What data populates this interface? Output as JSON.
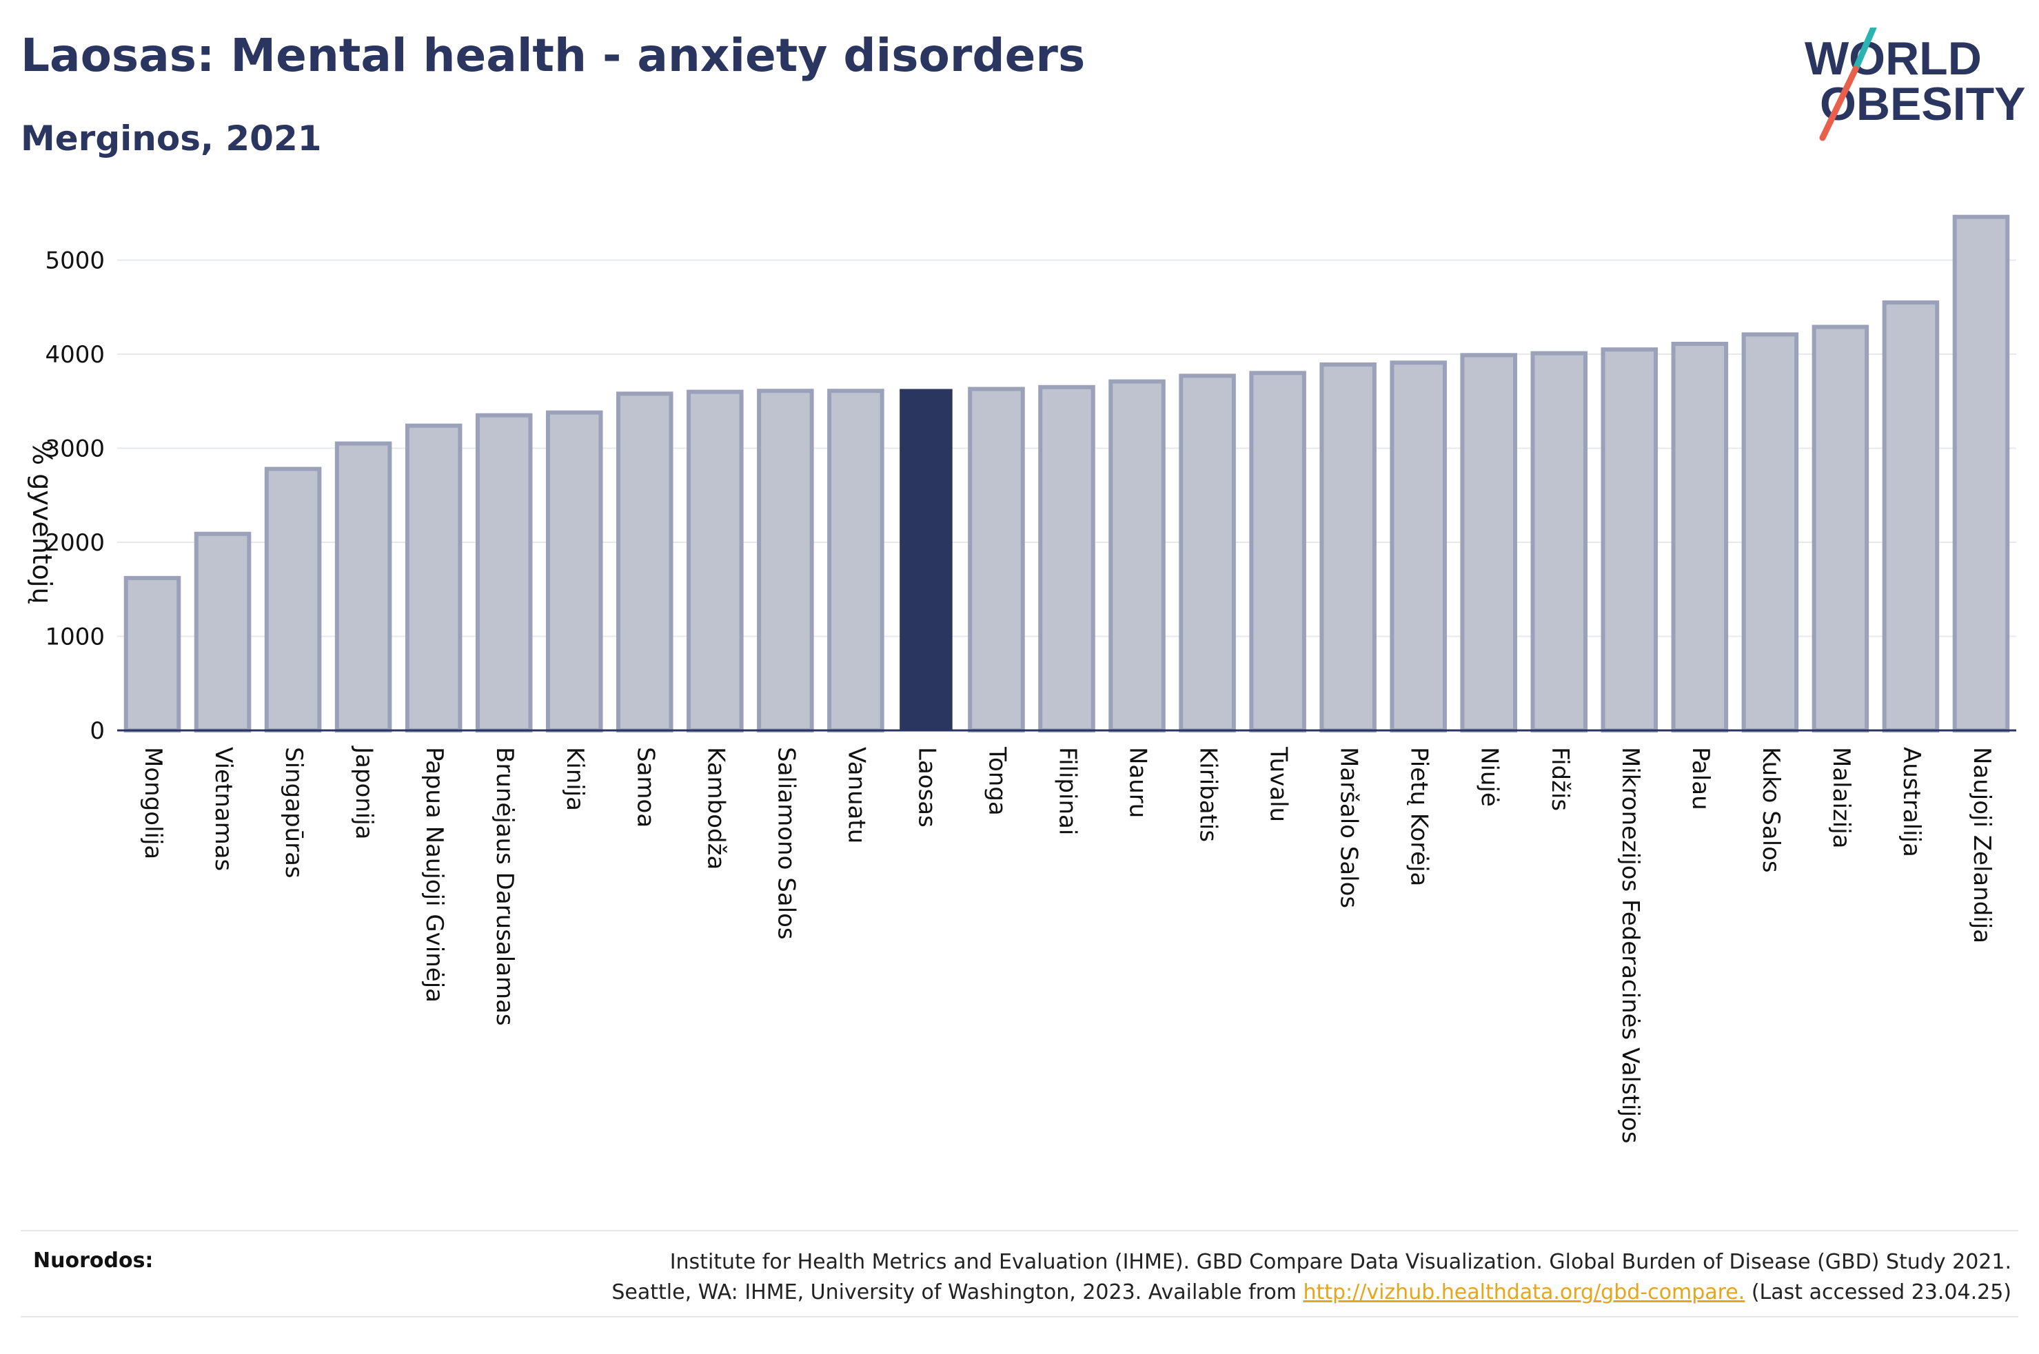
{
  "header": {
    "title": "Laosas: Mental health - anxiety disorders",
    "subtitle": "Merginos, 2021"
  },
  "logo": {
    "line1": "WORLD",
    "line2": "OBESITY",
    "colors": {
      "text": "#2a3560",
      "slash_top": "#2bb3b1",
      "slash_bottom": "#e8604c"
    }
  },
  "colors": {
    "bar": "#bfc3d0",
    "bar_stroke": "#9aa1b8",
    "highlight": "#2a3560",
    "grid": "#e6e8ee",
    "axis": "#2a3560",
    "link": "#e7a51d"
  },
  "chart_data": {
    "type": "bar",
    "title": "Laosas: Mental health - anxiety disorders",
    "subtitle": "Merginos, 2021",
    "ylabel": "% gyventojų",
    "xlabel": "",
    "ylim": [
      0,
      5600
    ],
    "yticks": [
      0,
      1000,
      2000,
      3000,
      4000,
      5000
    ],
    "grid": true,
    "highlight": "Laosas",
    "categories": [
      "Mongolija",
      "Vietnamas",
      "Singapūras",
      "Japonija",
      "Papua Naujoji Gvinėja",
      "Brunėjaus Darusalamas",
      "Kinija",
      "Samoa",
      "Kambodža",
      "Saliamono Salos",
      "Vanuatu",
      "Laosas",
      "Tonga",
      "Filipinai",
      "Nauru",
      "Kiribatis",
      "Tuvalu",
      "Maršalo Salos",
      "Pietų Korėja",
      "Niujė",
      "Fidžis",
      "Mikronezijos Federacinės Valstijos",
      "Palau",
      "Kuko Salos",
      "Malaizija",
      "Australija",
      "Naujoji Zelandija"
    ],
    "values": [
      1620,
      2090,
      2780,
      3050,
      3240,
      3350,
      3380,
      3580,
      3600,
      3610,
      3610,
      3630,
      3630,
      3650,
      3710,
      3770,
      3800,
      3890,
      3910,
      3990,
      4010,
      4050,
      4110,
      4210,
      4290,
      4550,
      5460
    ]
  },
  "references": {
    "label": "Nuorodos:",
    "line1": "Institute for Health Metrics and Evaluation (IHME). GBD Compare Data Visualization. Global Burden of Disease (GBD) Study 2021.",
    "line2_before": "Seattle, WA: IHME, University of Washington, 2023. Available from ",
    "link": "http://vizhub.healthdata.org/gbd-compare.",
    "line2_after": " (Last accessed 23.04.25)"
  }
}
